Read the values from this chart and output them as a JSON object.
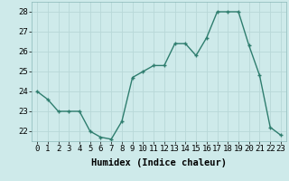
{
  "x": [
    0,
    1,
    2,
    3,
    4,
    5,
    6,
    7,
    8,
    9,
    10,
    11,
    12,
    13,
    14,
    15,
    16,
    17,
    18,
    19,
    20,
    21,
    22,
    23
  ],
  "y": [
    24.0,
    23.6,
    23.0,
    23.0,
    23.0,
    22.0,
    21.7,
    21.6,
    22.5,
    24.7,
    25.0,
    25.3,
    25.3,
    26.4,
    26.4,
    25.8,
    26.7,
    28.0,
    28.0,
    28.0,
    26.3,
    24.8,
    22.2,
    21.8
  ],
  "line_color": "#2e7d6e",
  "marker": "+",
  "bg_color": "#ceeaea",
  "grid_color": "#b8d8d8",
  "xlabel": "Humidex (Indice chaleur)",
  "ylim": [
    21.5,
    28.5
  ],
  "yticks": [
    22,
    23,
    24,
    25,
    26,
    27,
    28
  ],
  "xticks": [
    0,
    1,
    2,
    3,
    4,
    5,
    6,
    7,
    8,
    9,
    10,
    11,
    12,
    13,
    14,
    15,
    16,
    17,
    18,
    19,
    20,
    21,
    22,
    23
  ],
  "tick_fontsize": 6.5,
  "xlabel_fontsize": 7.5,
  "marker_size": 3,
  "line_width": 1.0
}
